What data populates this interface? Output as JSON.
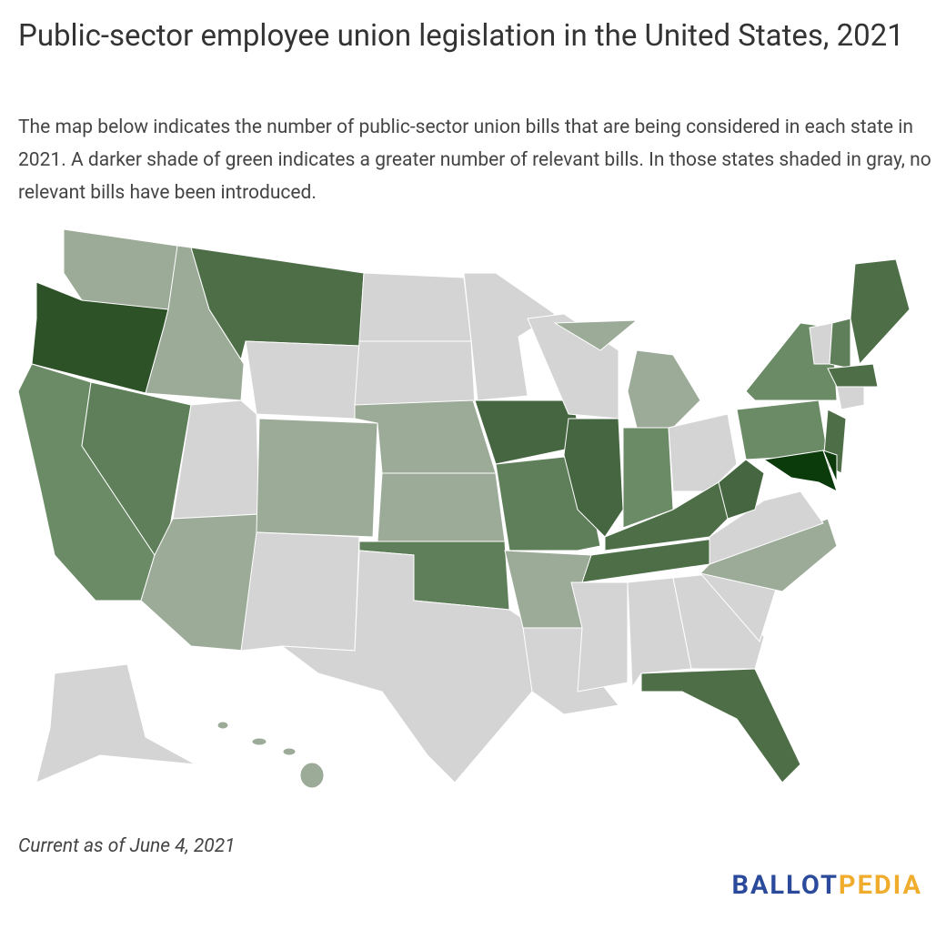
{
  "header": {
    "title": "Public-sector employee union legislation in the United States, 2021",
    "description": "The map below indicates the number of public-sector union bills that are being considered in each state in 2021. A darker shade of green indicates a greater number of relevant bills. In those states shaded in gray, no relevant bills have been introduced."
  },
  "footer": {
    "note": "Current as of June 4, 2021",
    "logo_left": "BALLOT",
    "logo_right": "PEDIA"
  }
}
